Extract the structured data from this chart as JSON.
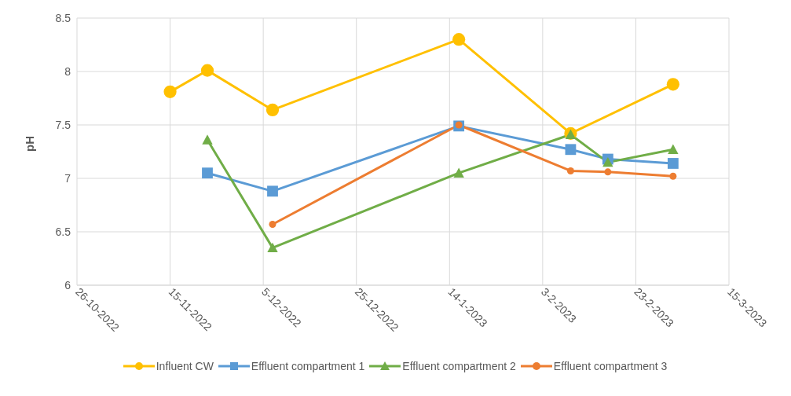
{
  "chart_data": {
    "type": "line",
    "ylabel": "pH",
    "xlim": [
      "2022-10-26",
      "2023-03-15"
    ],
    "xticks": [
      {
        "value": "2022-10-26",
        "label": "26-10-2022"
      },
      {
        "value": "2022-11-15",
        "label": "15-11-2022"
      },
      {
        "value": "2022-12-05",
        "label": "5-12-2022"
      },
      {
        "value": "2022-12-25",
        "label": "25-12-2022"
      },
      {
        "value": "2023-01-14",
        "label": "14-1-2023"
      },
      {
        "value": "2023-02-03",
        "label": "3-2-2023"
      },
      {
        "value": "2023-02-23",
        "label": "23-2-2023"
      },
      {
        "value": "2023-03-15",
        "label": "15-3-2023"
      }
    ],
    "ylim": [
      6,
      8.5
    ],
    "yticks": [
      6,
      6.5,
      7,
      7.5,
      8,
      8.5
    ],
    "grid": true,
    "legend": "bottom",
    "line_style": "solid",
    "series": [
      {
        "name": "Influent CW",
        "color": "#ffc000",
        "marker": "circle",
        "x": [
          "2022-11-15",
          "2022-11-23",
          "2022-12-07",
          "2023-01-16",
          "2023-02-09",
          "2023-03-03"
        ],
        "values": [
          7.81,
          8.01,
          7.64,
          8.3,
          7.42,
          7.88
        ]
      },
      {
        "name": "Effluent compartment 1",
        "color": "#5b9bd5",
        "marker": "square",
        "x": [
          "2022-11-23",
          "2022-12-07",
          "2023-01-16",
          "2023-02-09",
          "2023-02-17",
          "2023-03-03"
        ],
        "values": [
          7.05,
          6.88,
          7.49,
          7.27,
          7.18,
          7.14
        ]
      },
      {
        "name": "Effluent compartment 2",
        "color": "#70ad47",
        "marker": "triangle",
        "x": [
          "2022-11-23",
          "2022-12-07",
          "2023-01-16",
          "2023-02-09",
          "2023-02-17",
          "2023-03-03"
        ],
        "values": [
          7.36,
          6.35,
          7.05,
          7.41,
          7.15,
          7.27
        ]
      },
      {
        "name": "Effluent compartment 3",
        "color": "#ed7d31",
        "marker": "circle",
        "x": [
          "2022-12-07",
          "2023-01-16",
          "2023-02-09",
          "2023-02-17",
          "2023-03-03"
        ],
        "values": [
          6.57,
          7.5,
          7.07,
          7.06,
          7.02
        ]
      }
    ]
  }
}
